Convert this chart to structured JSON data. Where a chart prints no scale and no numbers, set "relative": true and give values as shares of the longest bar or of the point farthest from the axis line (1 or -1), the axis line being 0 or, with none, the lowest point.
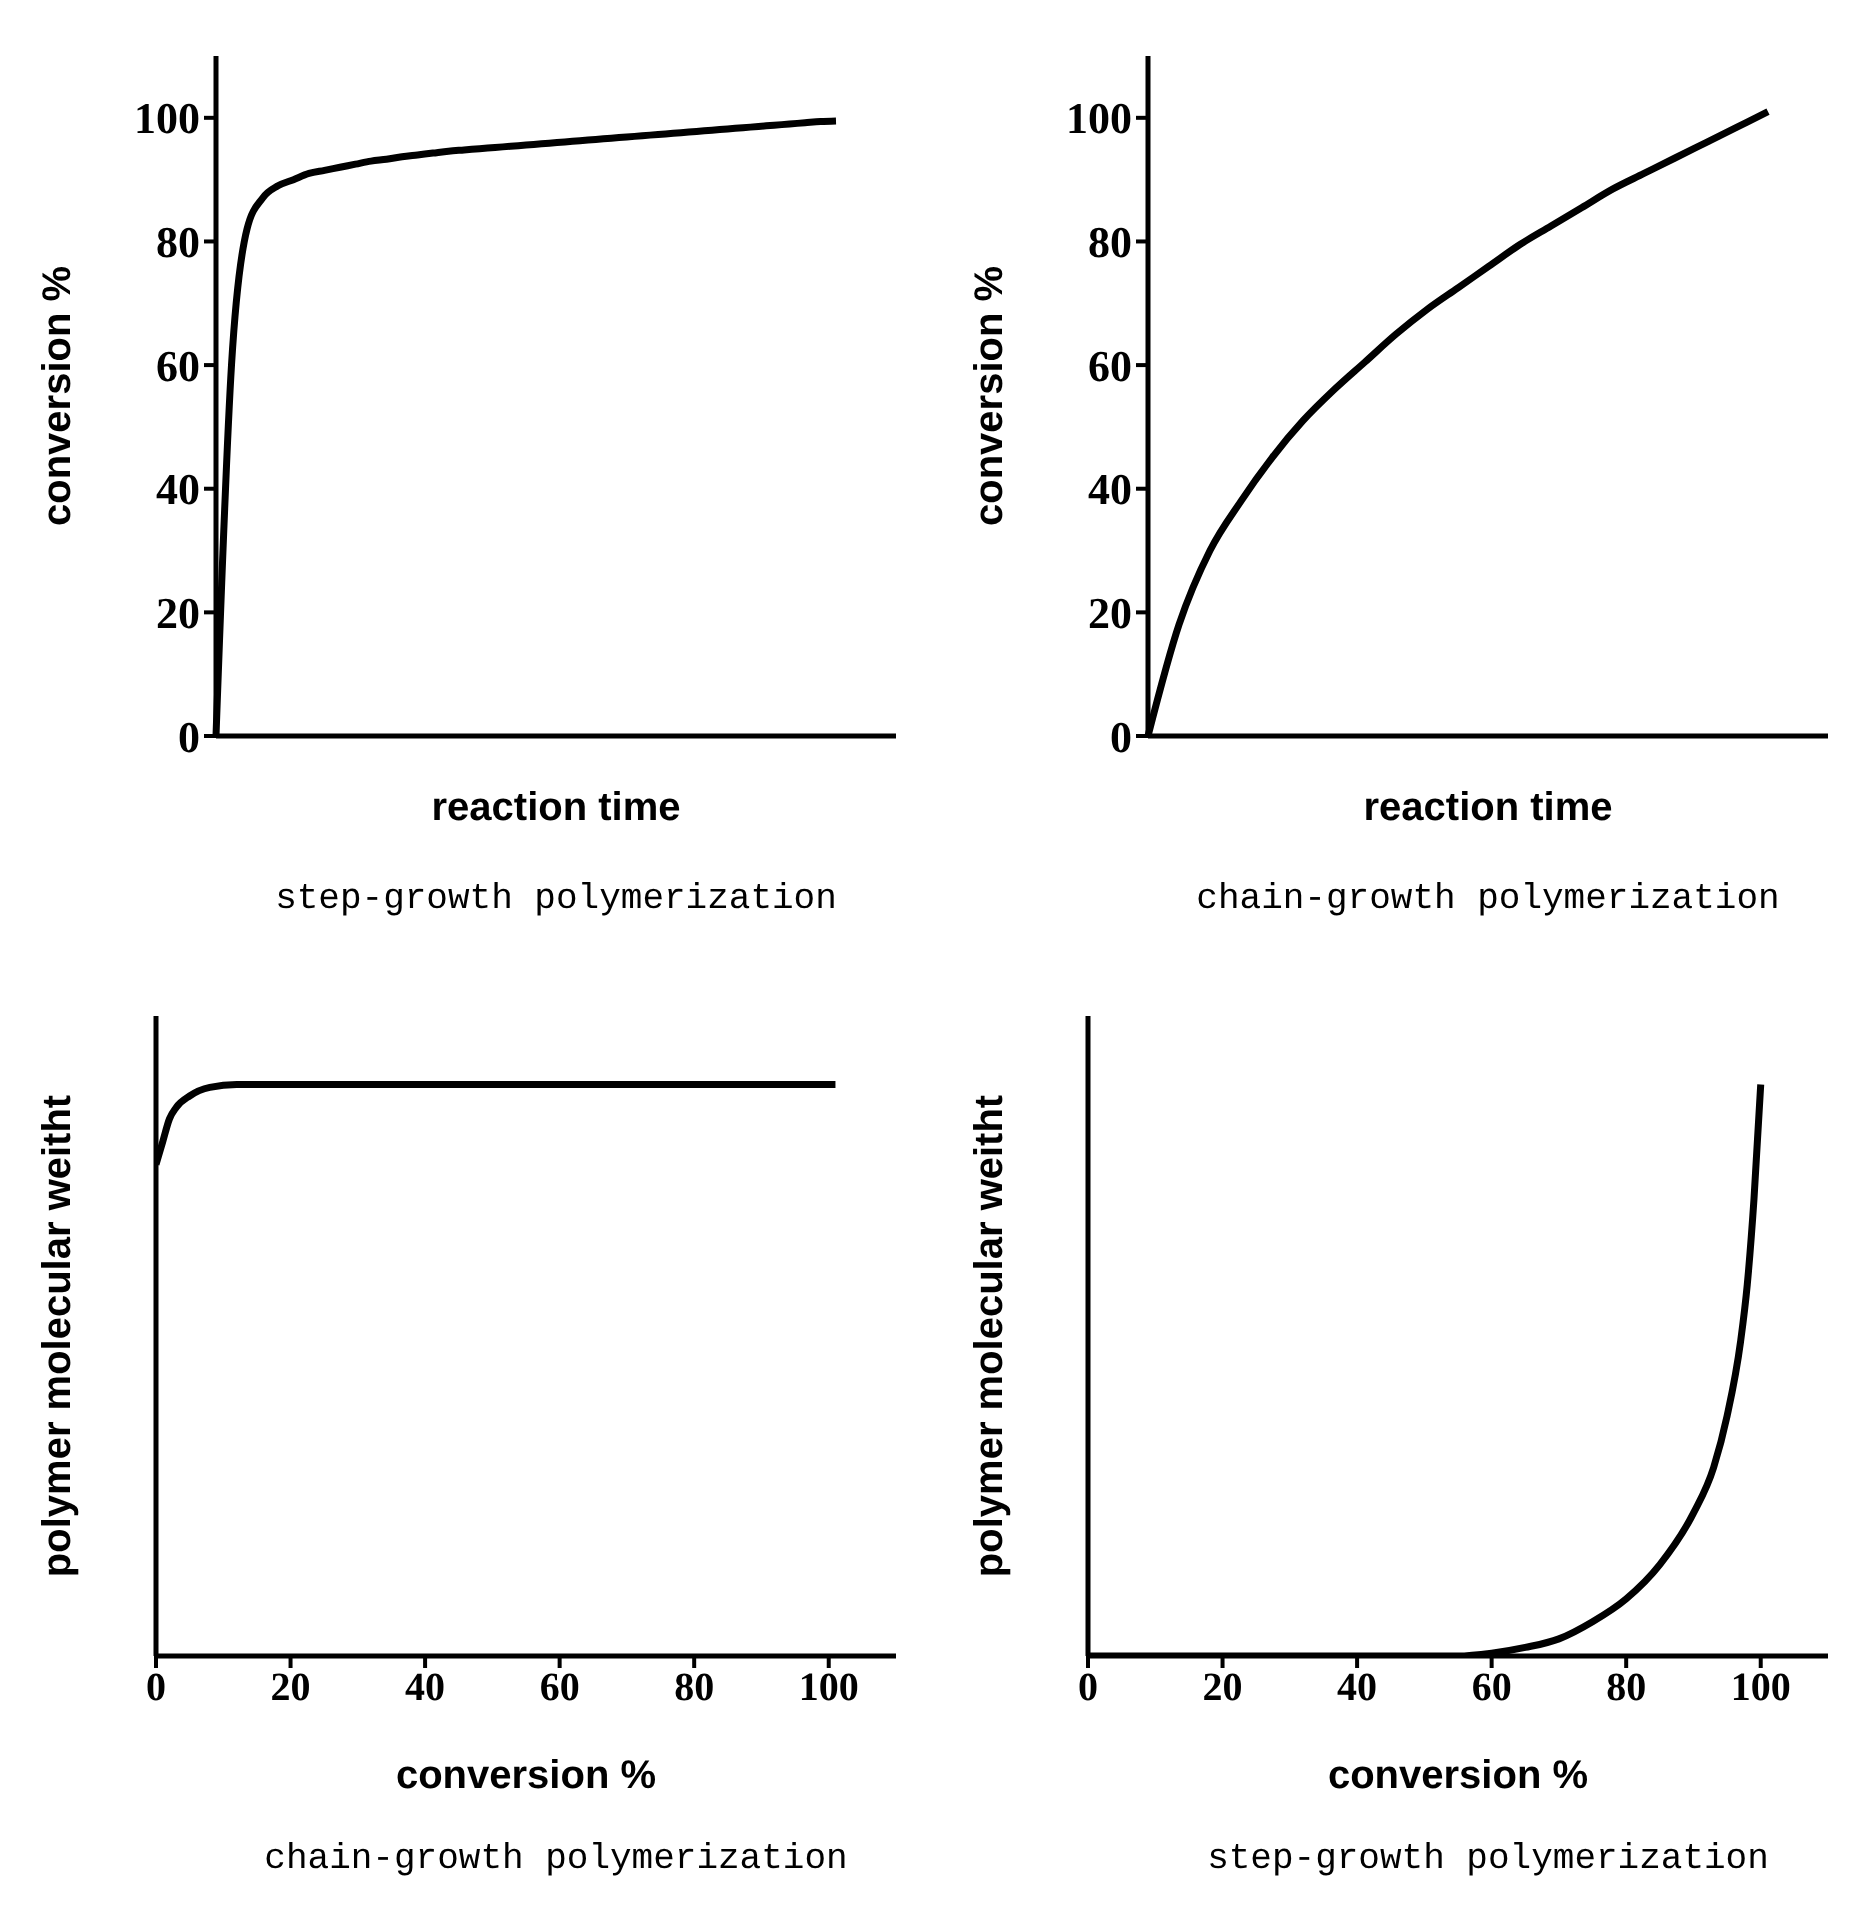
{
  "chart_data": [
    {
      "type": "line",
      "xlabel": "reaction time",
      "ylabel": "conversion %",
      "annotations": [
        "step-growth polymerization"
      ],
      "categories": [
        null,
        null,
        null,
        null,
        null,
        null,
        null,
        null,
        null,
        null,
        null,
        null,
        null,
        null,
        null,
        null,
        null,
        null,
        null,
        null,
        null,
        null,
        null,
        null,
        null,
        null,
        null,
        null,
        null,
        null,
        null,
        null,
        null,
        null,
        null,
        null,
        null,
        null,
        null,
        null,
        null
      ],
      "series": [
        {
          "color": "#000000",
          "values": [
            0,
            60,
            82,
            87,
            89,
            90,
            91,
            91.5,
            92,
            92.5,
            93,
            93.3,
            93.7,
            94,
            94.3,
            94.6,
            94.8,
            95,
            95.2,
            95.4,
            95.6,
            95.8,
            96,
            96.2,
            96.4,
            96.6,
            96.8,
            97,
            97.2,
            97.4,
            97.6,
            97.8,
            98,
            98.2,
            98.4,
            98.6,
            98.8,
            99,
            99.2,
            99.4,
            99.5
          ]
        }
      ],
      "ylim": [
        0,
        110
      ],
      "yticks": [
        0,
        20,
        40,
        60,
        80,
        100
      ],
      "tick_labels": "y",
      "grid": false,
      "legend": false,
      "marker": "none",
      "line_style": "solid"
    },
    {
      "type": "line",
      "xlabel": "reaction time",
      "ylabel": "conversion %",
      "annotations": [
        "chain-growth polymerization"
      ],
      "categories": [
        null,
        null,
        null,
        null,
        null,
        null,
        null,
        null,
        null,
        null,
        null,
        null,
        null,
        null,
        null,
        null,
        null,
        null,
        null,
        null,
        null
      ],
      "series": [
        {
          "color": "#000000",
          "values": [
            0,
            18,
            30,
            38,
            45,
            51,
            56,
            60.5,
            65,
            69,
            72.5,
            76,
            79.5,
            82.5,
            85.5,
            88.5,
            91,
            93.5,
            96,
            98.5,
            101
          ]
        }
      ],
      "ylim": [
        0,
        110
      ],
      "yticks": [
        0,
        20,
        40,
        60,
        80,
        100
      ],
      "tick_labels": "y",
      "grid": false,
      "legend": false,
      "marker": "none",
      "line_style": "solid"
    },
    {
      "type": "line",
      "xlabel": "conversion %",
      "ylabel": "polymer molecular weitht",
      "annotations": [
        "chain-growth polymerization"
      ],
      "relative": true,
      "series": [
        {
          "color": "#000000",
          "x": [
            0,
            1,
            2,
            3,
            5,
            8,
            12,
            30,
            60,
            100,
            101
          ],
          "values": [
            0.86,
            0.9,
            0.94,
            0.96,
            0.98,
            0.995,
            1,
            1,
            1,
            1,
            1
          ]
        }
      ],
      "xlim": [
        0,
        110
      ],
      "xticks": [
        0,
        20,
        40,
        60,
        80,
        100
      ],
      "tick_labels": "x",
      "grid": false,
      "legend": false,
      "marker": "none",
      "line_style": "solid"
    },
    {
      "type": "line",
      "xlabel": "conversion %",
      "ylabel": "polymer molecular weitht",
      "annotations": [
        "step-growth polymerization"
      ],
      "relative": true,
      "series": [
        {
          "color": "#000000",
          "x": [
            0,
            50,
            55,
            60,
            65,
            70,
            75,
            80,
            85,
            90,
            93,
            95,
            97,
            98,
            99,
            100
          ],
          "values": [
            0,
            0,
            0,
            0.005,
            0.015,
            0.03,
            0.06,
            0.1,
            0.16,
            0.25,
            0.33,
            0.42,
            0.55,
            0.65,
            0.8,
            1
          ]
        }
      ],
      "xlim": [
        0,
        110
      ],
      "xticks": [
        0,
        20,
        40,
        60,
        80,
        100
      ],
      "tick_labels": "x",
      "grid": false,
      "legend": false,
      "marker": "none",
      "line_style": "solid"
    }
  ]
}
